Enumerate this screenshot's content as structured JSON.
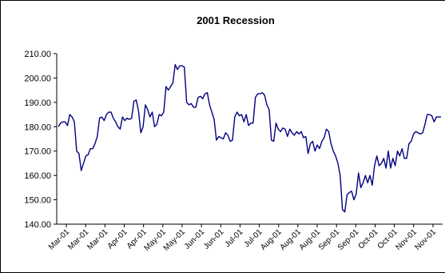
{
  "chart_data": {
    "type": "line",
    "title": "2001 Recession",
    "xlabel": "",
    "ylabel": "",
    "ylim": [
      140,
      210
    ],
    "ytick_labels": [
      "140.00",
      "150.00",
      "160.00",
      "170.00",
      "180.00",
      "190.00",
      "200.00",
      "210.00"
    ],
    "xtick_labels": [
      "Mar-01",
      "Mar-01",
      "Mar-01",
      "Apr-01",
      "Apr-01",
      "May-01",
      "May-01",
      "Jun-01",
      "Jun-01",
      "Jul-01",
      "Jul-01",
      "Aug-01",
      "Aug-01",
      "Aug-01",
      "Sep-01",
      "Sep-01",
      "Oct-01",
      "Oct-01",
      "Nov-01",
      "Nov-01"
    ],
    "grid": false,
    "legend": "none",
    "line_color": "#000080",
    "series": [
      {
        "values": [
          180.0,
          181.5,
          182.0,
          182.0,
          180.5,
          185.0,
          184.0,
          182.0,
          170.0,
          169.0,
          162.0,
          165.0,
          168.0,
          168.5,
          171.0,
          171.0,
          173.0,
          176.0,
          183.5,
          184.0,
          182.5,
          185.0,
          186.0,
          186.0,
          183.5,
          182.0,
          180.0,
          179.0,
          184.0,
          182.5,
          183.5,
          183.0,
          183.5,
          190.5,
          191.0,
          186.5,
          177.5,
          180.0,
          189.0,
          187.0,
          184.0,
          186.0,
          180.0,
          181.0,
          185.0,
          184.5,
          186.0,
          196.5,
          195.0,
          196.5,
          198.0,
          205.5,
          203.5,
          205.0,
          205.0,
          204.5,
          190.0,
          189.0,
          189.5,
          188.0,
          188.0,
          192.0,
          192.5,
          191.5,
          193.5,
          194.0,
          189.0,
          186.0,
          183.0,
          174.5,
          176.0,
          175.5,
          175.0,
          177.5,
          176.5,
          174.0,
          174.5,
          184.0,
          186.0,
          184.5,
          185.0,
          182.0,
          185.0,
          180.5,
          181.5,
          181.5,
          192.0,
          193.5,
          193.5,
          194.0,
          193.0,
          189.0,
          187.0,
          174.5,
          174.0,
          181.5,
          179.0,
          178.0,
          179.5,
          179.0,
          176.0,
          179.0,
          177.5,
          176.5,
          178.0,
          177.0,
          178.0,
          175.5,
          176.0,
          169.0,
          173.0,
          174.0,
          170.0,
          172.5,
          171.0,
          174.0,
          175.5,
          179.0,
          178.0,
          173.0,
          170.0,
          168.0,
          165.0,
          160.0,
          146.0,
          145.0,
          152.0,
          153.0,
          153.5,
          150.0,
          152.5,
          161.0,
          155.0,
          157.0,
          160.0,
          157.0,
          160.0,
          156.0,
          164.0,
          168.0,
          164.0,
          165.0,
          167.0,
          163.0,
          170.0,
          163.0,
          167.0,
          164.0,
          170.0,
          168.0,
          171.0,
          167.0,
          167.0,
          173.0,
          174.0,
          177.0,
          178.0,
          177.5,
          177.0,
          177.5,
          181.0,
          185.0,
          185.0,
          184.5,
          182.0,
          184.0,
          184.0,
          184.0
        ]
      }
    ]
  }
}
